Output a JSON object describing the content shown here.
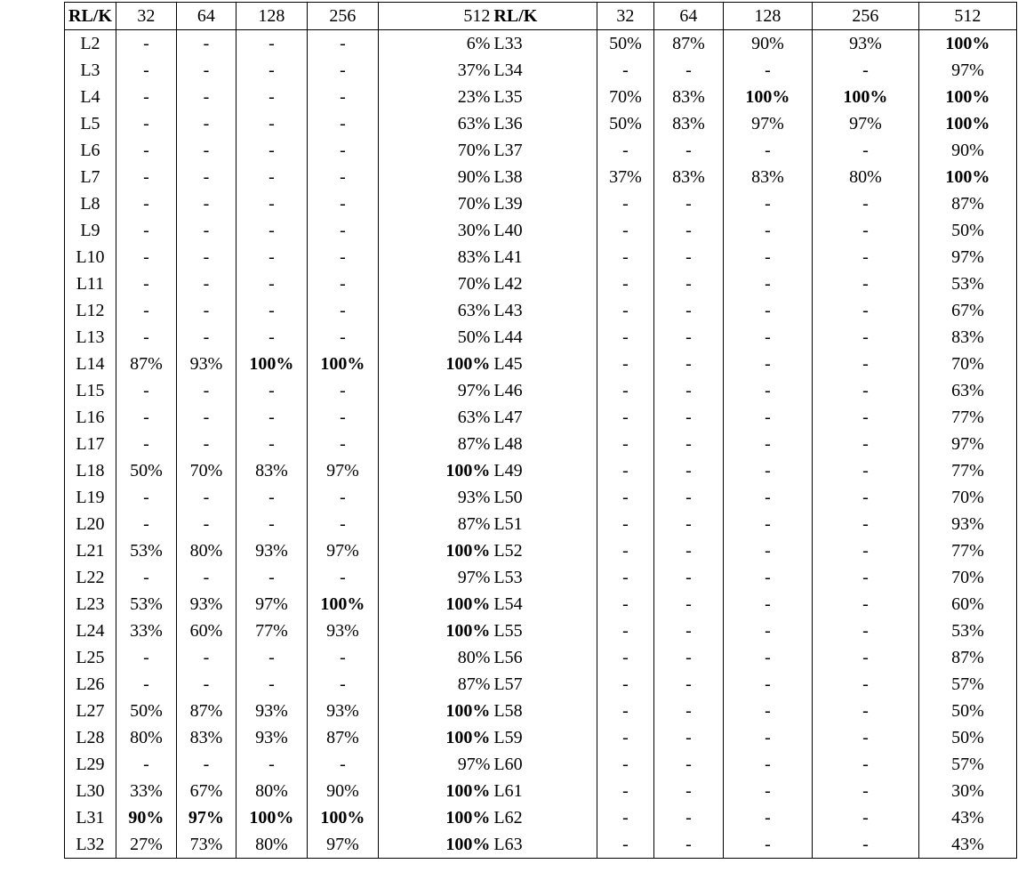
{
  "table": {
    "header": [
      {
        "text": "RL/K",
        "bold": true
      },
      "32",
      "64",
      "128",
      "256",
      "512",
      {
        "text": "RL/K",
        "bold": true
      },
      "32",
      "64",
      "128",
      "256",
      "512"
    ],
    "rows": [
      [
        "L2",
        "-",
        "-",
        "-",
        "-",
        "6%",
        "L33",
        "50%",
        "87%",
        "90%",
        "93%",
        {
          "text": "100%",
          "bold": true
        }
      ],
      [
        "L3",
        "-",
        "-",
        "-",
        "-",
        "37%",
        "L34",
        "-",
        "-",
        "-",
        "-",
        "97%"
      ],
      [
        "L4",
        "-",
        "-",
        "-",
        "-",
        "23%",
        "L35",
        "70%",
        "83%",
        {
          "text": "100%",
          "bold": true
        },
        {
          "text": "100%",
          "bold": true
        },
        {
          "text": "100%",
          "bold": true
        }
      ],
      [
        "L5",
        "-",
        "-",
        "-",
        "-",
        "63%",
        "L36",
        "50%",
        "83%",
        "97%",
        "97%",
        {
          "text": "100%",
          "bold": true
        }
      ],
      [
        "L6",
        "-",
        "-",
        "-",
        "-",
        "70%",
        "L37",
        "-",
        "-",
        "-",
        "-",
        "90%"
      ],
      [
        "L7",
        "-",
        "-",
        "-",
        "-",
        "90%",
        "L38",
        "37%",
        "83%",
        "83%",
        "80%",
        {
          "text": "100%",
          "bold": true
        }
      ],
      [
        "L8",
        "-",
        "-",
        "-",
        "-",
        "70%",
        "L39",
        "-",
        "-",
        "-",
        "-",
        "87%"
      ],
      [
        "L9",
        "-",
        "-",
        "-",
        "-",
        "30%",
        "L40",
        "-",
        "-",
        "-",
        "-",
        "50%"
      ],
      [
        "L10",
        "-",
        "-",
        "-",
        "-",
        "83%",
        "L41",
        "-",
        "-",
        "-",
        "-",
        "97%"
      ],
      [
        "L11",
        "-",
        "-",
        "-",
        "-",
        "70%",
        "L42",
        "-",
        "-",
        "-",
        "-",
        "53%"
      ],
      [
        "L12",
        "-",
        "-",
        "-",
        "-",
        "63%",
        "L43",
        "-",
        "-",
        "-",
        "-",
        "67%"
      ],
      [
        "L13",
        "-",
        "-",
        "-",
        "-",
        "50%",
        "L44",
        "-",
        "-",
        "-",
        "-",
        "83%"
      ],
      [
        "L14",
        "87%",
        "93%",
        {
          "text": "100%",
          "bold": true
        },
        {
          "text": "100%",
          "bold": true
        },
        {
          "text": "100%",
          "bold": true
        },
        "L45",
        "-",
        "-",
        "-",
        "-",
        "70%"
      ],
      [
        "L15",
        "-",
        "-",
        "-",
        "-",
        "97%",
        "L46",
        "-",
        "-",
        "-",
        "-",
        "63%"
      ],
      [
        "L16",
        "-",
        "-",
        "-",
        "-",
        "63%",
        "L47",
        "-",
        "-",
        "-",
        "-",
        "77%"
      ],
      [
        "L17",
        "-",
        "-",
        "-",
        "-",
        "87%",
        "L48",
        "-",
        "-",
        "-",
        "-",
        "97%"
      ],
      [
        "L18",
        "50%",
        "70%",
        "83%",
        "97%",
        {
          "text": "100%",
          "bold": true
        },
        "L49",
        "-",
        "-",
        "-",
        "-",
        "77%"
      ],
      [
        "L19",
        "-",
        "-",
        "-",
        "-",
        "93%",
        "L50",
        "-",
        "-",
        "-",
        "-",
        "70%"
      ],
      [
        "L20",
        "-",
        "-",
        "-",
        "-",
        "87%",
        "L51",
        "-",
        "-",
        "-",
        "-",
        "93%"
      ],
      [
        "L21",
        "53%",
        "80%",
        "93%",
        "97%",
        {
          "text": "100%",
          "bold": true
        },
        "L52",
        "-",
        "-",
        "-",
        "-",
        "77%"
      ],
      [
        "L22",
        "-",
        "-",
        "-",
        "-",
        "97%",
        "L53",
        "-",
        "-",
        "-",
        "-",
        "70%"
      ],
      [
        "L23",
        "53%",
        "93%",
        "97%",
        {
          "text": "100%",
          "bold": true
        },
        {
          "text": "100%",
          "bold": true
        },
        "L54",
        "-",
        "-",
        "-",
        "-",
        "60%"
      ],
      [
        "L24",
        "33%",
        "60%",
        "77%",
        "93%",
        {
          "text": "100%",
          "bold": true
        },
        "L55",
        "-",
        "-",
        "-",
        "-",
        "53%"
      ],
      [
        "L25",
        "-",
        "-",
        "-",
        "-",
        "80%",
        "L56",
        "-",
        "-",
        "-",
        "-",
        "87%"
      ],
      [
        "L26",
        "-",
        "-",
        "-",
        "-",
        "87%",
        "L57",
        "-",
        "-",
        "-",
        "-",
        "57%"
      ],
      [
        "L27",
        "50%",
        "87%",
        "93%",
        "93%",
        {
          "text": "100%",
          "bold": true
        },
        "L58",
        "-",
        "-",
        "-",
        "-",
        "50%"
      ],
      [
        "L28",
        "80%",
        "83%",
        "93%",
        "87%",
        {
          "text": "100%",
          "bold": true
        },
        "L59",
        "-",
        "-",
        "-",
        "-",
        "50%"
      ],
      [
        "L29",
        "-",
        "-",
        "-",
        "-",
        "97%",
        "L60",
        "-",
        "-",
        "-",
        "-",
        "57%"
      ],
      [
        "L30",
        "33%",
        "67%",
        "80%",
        "90%",
        {
          "text": "100%",
          "bold": true
        },
        "L61",
        "-",
        "-",
        "-",
        "-",
        "30%"
      ],
      [
        "L31",
        {
          "text": "90%",
          "bold": true
        },
        {
          "text": "97%",
          "bold": true
        },
        {
          "text": "100%",
          "bold": true
        },
        {
          "text": "100%",
          "bold": true
        },
        {
          "text": "100%",
          "bold": true
        },
        "L62",
        "-",
        "-",
        "-",
        "-",
        "43%"
      ],
      [
        "L32",
        "27%",
        "73%",
        "80%",
        "97%",
        {
          "text": "100%",
          "bold": true
        },
        "L63",
        "-",
        "-",
        "-",
        "-",
        "43%"
      ]
    ]
  }
}
